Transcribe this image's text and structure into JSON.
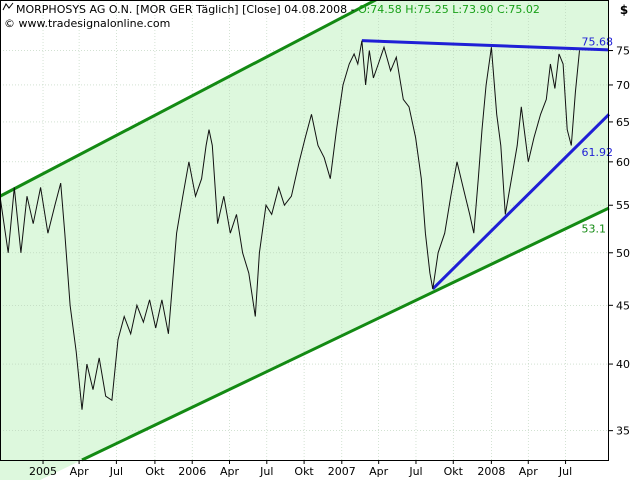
{
  "header": {
    "logo_icon": "chart-logo-icon",
    "title": "MORPHOSYS AG O.N. [MOR GER  Täglich] [Close] 04.08.2008 - ",
    "ohlc": "O:74.58 H:75.25 L:73.90 C:75.02",
    "copyright": "© www.tradesignalonline.com"
  },
  "colors": {
    "channel_line": "#138a13",
    "channel_fill": "#ddf8dd",
    "trend_line": "#1f1fd6",
    "price_line": "#111111",
    "header_green": "#18a018",
    "channel_label": "#138a13",
    "trend_label": "#1f1fd6",
    "grid": "#b8d0b8"
  },
  "chart_data": {
    "type": "line",
    "title": "MORPHOSYS AG O.N. [MOR GER Täglich] [Close] 04.08.2008",
    "y_axis_label": "$",
    "y_scale": "log",
    "ylim": [
      33,
      83
    ],
    "y_ticks": [
      35,
      40,
      45,
      50,
      55,
      60,
      65,
      70,
      75
    ],
    "x_ticks": [
      {
        "label": "2005",
        "date": "2005-01-03"
      },
      {
        "label": "Apr",
        "date": "2005-04-01"
      },
      {
        "label": "Jul",
        "date": "2005-07-01"
      },
      {
        "label": "Okt",
        "date": "2005-10-03"
      },
      {
        "label": "2006",
        "date": "2006-01-02"
      },
      {
        "label": "Apr",
        "date": "2006-04-03"
      },
      {
        "label": "Jul",
        "date": "2006-07-03"
      },
      {
        "label": "Okt",
        "date": "2006-10-02"
      },
      {
        "label": "2007",
        "date": "2007-01-02"
      },
      {
        "label": "Apr",
        "date": "2007-04-02"
      },
      {
        "label": "Jul",
        "date": "2007-07-02"
      },
      {
        "label": "Okt",
        "date": "2007-10-01"
      },
      {
        "label": "2008",
        "date": "2008-01-02"
      },
      {
        "label": "Apr",
        "date": "2008-04-01"
      },
      {
        "label": "Jul",
        "date": "2008-07-01"
      }
    ],
    "xlim": [
      "2004-09-20",
      "2008-10-15"
    ],
    "grid": true,
    "series": [
      {
        "name": "Close",
        "points": [
          [
            "2004-09-20",
            56
          ],
          [
            "2004-10-10",
            50
          ],
          [
            "2004-10-25",
            57
          ],
          [
            "2004-11-10",
            50
          ],
          [
            "2004-11-25",
            56
          ],
          [
            "2004-12-10",
            53
          ],
          [
            "2004-12-28",
            57
          ],
          [
            "2005-01-15",
            52
          ],
          [
            "2005-02-01",
            55
          ],
          [
            "2005-02-15",
            57.5
          ],
          [
            "2005-02-25",
            52
          ],
          [
            "2005-03-10",
            45
          ],
          [
            "2005-03-25",
            41
          ],
          [
            "2005-04-08",
            36.5
          ],
          [
            "2005-04-20",
            40
          ],
          [
            "2005-05-05",
            38
          ],
          [
            "2005-05-20",
            40.5
          ],
          [
            "2005-06-05",
            37.5
          ],
          [
            "2005-06-20",
            37.2
          ],
          [
            "2005-07-05",
            42
          ],
          [
            "2005-07-20",
            44
          ],
          [
            "2005-08-05",
            42.5
          ],
          [
            "2005-08-20",
            45
          ],
          [
            "2005-09-05",
            43.5
          ],
          [
            "2005-09-20",
            45.5
          ],
          [
            "2005-10-05",
            43
          ],
          [
            "2005-10-20",
            45.5
          ],
          [
            "2005-11-05",
            42.5
          ],
          [
            "2005-11-15",
            47
          ],
          [
            "2005-11-25",
            52
          ],
          [
            "2005-12-10",
            56
          ],
          [
            "2005-12-25",
            60
          ],
          [
            "2006-01-10",
            56
          ],
          [
            "2006-01-25",
            58
          ],
          [
            "2006-02-05",
            62
          ],
          [
            "2006-02-12",
            64
          ],
          [
            "2006-02-20",
            62
          ],
          [
            "2006-03-05",
            53
          ],
          [
            "2006-03-20",
            56
          ],
          [
            "2006-04-05",
            52
          ],
          [
            "2006-04-20",
            54
          ],
          [
            "2006-05-05",
            50
          ],
          [
            "2006-05-20",
            48
          ],
          [
            "2006-06-05",
            44
          ],
          [
            "2006-06-15",
            50
          ],
          [
            "2006-07-01",
            55
          ],
          [
            "2006-07-15",
            54
          ],
          [
            "2006-08-01",
            57
          ],
          [
            "2006-08-15",
            55
          ],
          [
            "2006-09-01",
            56
          ],
          [
            "2006-09-20",
            60
          ],
          [
            "2006-10-05",
            63
          ],
          [
            "2006-10-20",
            66
          ],
          [
            "2006-11-05",
            62
          ],
          [
            "2006-11-20",
            60.5
          ],
          [
            "2006-12-05",
            58
          ],
          [
            "2006-12-20",
            64
          ],
          [
            "2007-01-05",
            70
          ],
          [
            "2007-01-20",
            73
          ],
          [
            "2007-02-01",
            74.5
          ],
          [
            "2007-02-10",
            73
          ],
          [
            "2007-02-20",
            76.5
          ],
          [
            "2007-03-01",
            70
          ],
          [
            "2007-03-10",
            75
          ],
          [
            "2007-03-20",
            71
          ],
          [
            "2007-04-01",
            73
          ],
          [
            "2007-04-15",
            75.5
          ],
          [
            "2007-05-01",
            72
          ],
          [
            "2007-05-15",
            74
          ],
          [
            "2007-06-01",
            68
          ],
          [
            "2007-06-15",
            67
          ],
          [
            "2007-07-01",
            63
          ],
          [
            "2007-07-15",
            58
          ],
          [
            "2007-07-25",
            52
          ],
          [
            "2007-08-05",
            48
          ],
          [
            "2007-08-12",
            46.5
          ],
          [
            "2007-08-25",
            50
          ],
          [
            "2007-09-10",
            52
          ],
          [
            "2007-09-25",
            56
          ],
          [
            "2007-10-10",
            60
          ],
          [
            "2007-10-25",
            57
          ],
          [
            "2007-11-10",
            54
          ],
          [
            "2007-11-20",
            52
          ],
          [
            "2007-12-01",
            58
          ],
          [
            "2007-12-10",
            64
          ],
          [
            "2007-12-20",
            70
          ],
          [
            "2008-01-02",
            75.5
          ],
          [
            "2008-01-15",
            66
          ],
          [
            "2008-01-25",
            62
          ],
          [
            "2008-02-05",
            54
          ],
          [
            "2008-02-20",
            58
          ],
          [
            "2008-03-05",
            62
          ],
          [
            "2008-03-15",
            67
          ],
          [
            "2008-04-01",
            60
          ],
          [
            "2008-04-15",
            63
          ],
          [
            "2008-05-01",
            66
          ],
          [
            "2008-05-15",
            68
          ],
          [
            "2008-05-25",
            73
          ],
          [
            "2008-06-05",
            69.5
          ],
          [
            "2008-06-15",
            74.5
          ],
          [
            "2008-06-25",
            73
          ],
          [
            "2008-07-05",
            64
          ],
          [
            "2008-07-15",
            62
          ],
          [
            "2008-07-25",
            69
          ],
          [
            "2008-08-04",
            75.02
          ]
        ]
      }
    ],
    "overlays": [
      {
        "name": "channel-upper",
        "kind": "channel",
        "points": [
          [
            "2004-09-20",
            56
          ],
          [
            "2008-10-15",
            106
          ]
        ]
      },
      {
        "name": "channel-lower",
        "kind": "channel",
        "points": [
          [
            "2005-04-08",
            33
          ],
          [
            "2008-10-15",
            54.7
          ]
        ]
      },
      {
        "name": "resistance",
        "kind": "trend",
        "points": [
          [
            "2007-02-20",
            76.5
          ],
          [
            "2008-10-15",
            75.1
          ]
        ],
        "label": "75.68"
      },
      {
        "name": "support-rising",
        "kind": "trend",
        "points": [
          [
            "2007-08-12",
            46.5
          ],
          [
            "2008-10-15",
            66
          ]
        ],
        "label": "61.92"
      }
    ],
    "annotations": [
      {
        "text": "75.68",
        "x": "2008-08-04",
        "y": 76.4,
        "color": "trend"
      },
      {
        "text": "61.92",
        "x": "2008-08-04",
        "y": 61.2,
        "color": "trend"
      },
      {
        "text": "53.1",
        "x": "2008-08-04",
        "y": 52.5,
        "color": "channel"
      }
    ]
  }
}
